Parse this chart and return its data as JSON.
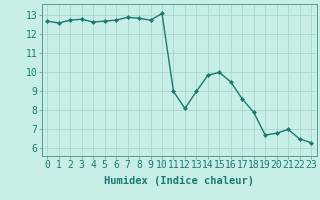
{
  "x": [
    0,
    1,
    2,
    3,
    4,
    5,
    6,
    7,
    8,
    9,
    10,
    11,
    12,
    13,
    14,
    15,
    16,
    17,
    18,
    19,
    20,
    21,
    22,
    23
  ],
  "y": [
    12.7,
    12.6,
    12.75,
    12.8,
    12.65,
    12.7,
    12.75,
    12.9,
    12.85,
    12.75,
    13.1,
    9.0,
    8.1,
    9.0,
    9.85,
    10.0,
    9.5,
    8.6,
    7.9,
    6.7,
    6.8,
    7.0,
    6.5,
    6.3
  ],
  "line_color": "#1a7a6e",
  "bg_color": "#c8eee8",
  "grid_color": "#a8d8d0",
  "xlabel": "Humidex (Indice chaleur)",
  "ylabel_ticks": [
    6,
    7,
    8,
    9,
    10,
    11,
    12,
    13
  ],
  "xlim": [
    -0.5,
    23.5
  ],
  "ylim": [
    5.6,
    13.6
  ],
  "marker": "D",
  "markersize": 2.0,
  "linewidth": 1.0,
  "xlabel_fontsize": 7.5,
  "tick_fontsize": 7.0,
  "spine_color": "#5a9a90",
  "tick_color": "#1a7a6e"
}
